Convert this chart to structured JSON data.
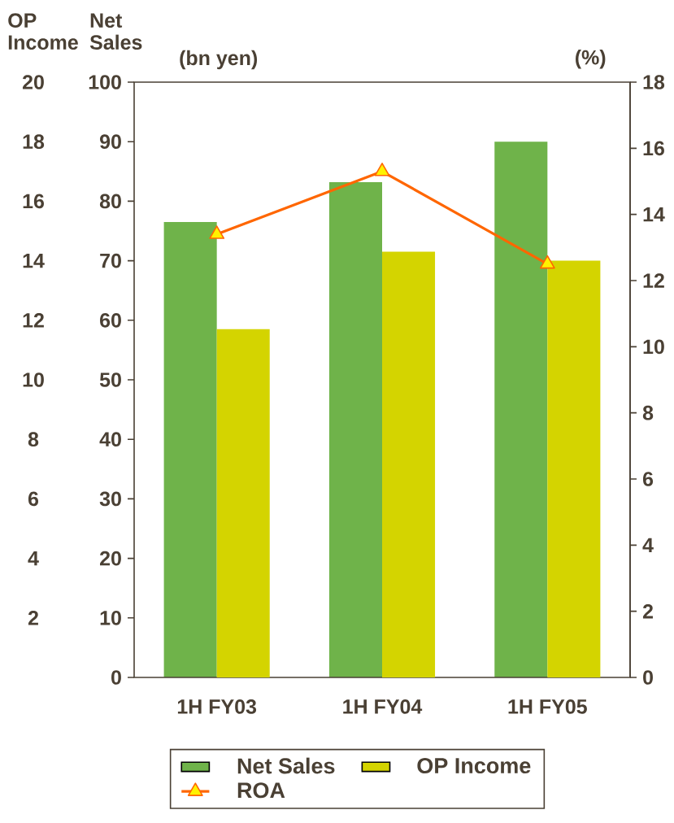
{
  "chart_data": {
    "type": "bar",
    "categories": [
      "1H FY03",
      "1H FY04",
      "1H FY05"
    ],
    "series": [
      {
        "name": "Net Sales",
        "color": "#6fb34a",
        "values": [
          76.5,
          83.2,
          90.0
        ]
      },
      {
        "name": "OP Income",
        "axis": "y2",
        "color": "#d4d400",
        "values": [
          11.7,
          14.3,
          14.0
        ]
      },
      {
        "name": "ROA",
        "type": "line",
        "axis": "y3",
        "color": "#ff6600",
        "marker": "triangle",
        "values": [
          13.4,
          15.3,
          12.5
        ]
      }
    ],
    "ylabel": "Net Sales",
    "ylim": [
      0,
      100
    ],
    "yticks": [
      0,
      10,
      20,
      30,
      40,
      50,
      60,
      70,
      80,
      90,
      100
    ],
    "y2label": "OP Income",
    "y2lim": [
      0,
      20
    ],
    "y2ticks": [
      2,
      4,
      6,
      8,
      10,
      12,
      14,
      16,
      18,
      20
    ],
    "y3label": "(%)",
    "y3lim": [
      0,
      18
    ],
    "y3ticks": [
      0,
      2,
      4,
      6,
      8,
      10,
      12,
      14,
      16,
      18
    ],
    "annotations": [
      "(bn yen)"
    ],
    "legend": "bottom"
  }
}
